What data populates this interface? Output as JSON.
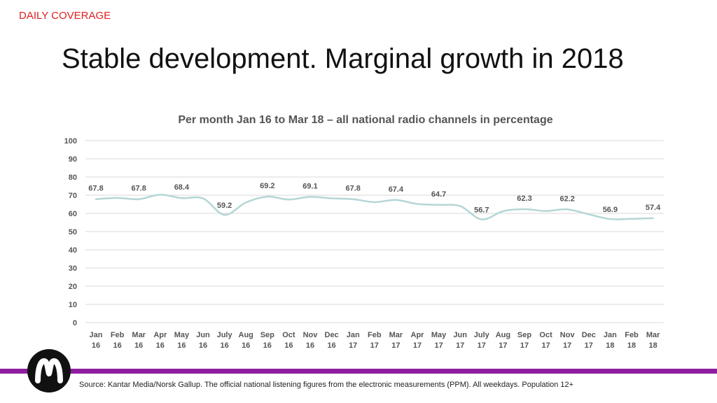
{
  "header": {
    "tag": "DAILY COVERAGE",
    "title": "Stable development. Marginal growth in 2018"
  },
  "footer": {
    "source": "Source: Kantar Media/Norsk Gallup. The official national listening figures from the electronic measurements (PPM). All weekdays. Population 12+",
    "logo_icon": "brand-logo-icon",
    "accent_color": "#8e1fa0"
  },
  "chart_data": {
    "type": "line",
    "title": "Per month Jan 16 to Mar 18 – all national radio channels in percentage",
    "xlabel": "",
    "ylabel": "",
    "ylim": [
      0,
      100
    ],
    "yticks": [
      0,
      10,
      20,
      30,
      40,
      50,
      60,
      70,
      80,
      90,
      100
    ],
    "grid": true,
    "line_color": "#b5d6d6",
    "categories": [
      [
        "Jan",
        "16"
      ],
      [
        "Feb",
        "16"
      ],
      [
        "Mar",
        "16"
      ],
      [
        "Apr",
        "16"
      ],
      [
        "May",
        "16"
      ],
      [
        "Jun",
        "16"
      ],
      [
        "July",
        "16"
      ],
      [
        "Aug",
        "16"
      ],
      [
        "Sep",
        "16"
      ],
      [
        "Oct",
        "16"
      ],
      [
        "Nov",
        "16"
      ],
      [
        "Dec",
        "16"
      ],
      [
        "Jan",
        "17"
      ],
      [
        "Feb",
        "17"
      ],
      [
        "Mar",
        "17"
      ],
      [
        "Apr",
        "17"
      ],
      [
        "May",
        "17"
      ],
      [
        "Jun",
        "17"
      ],
      [
        "July",
        "17"
      ],
      [
        "Aug",
        "17"
      ],
      [
        "Sep",
        "17"
      ],
      [
        "Oct",
        "17"
      ],
      [
        "Nov",
        "17"
      ],
      [
        "Dec",
        "17"
      ],
      [
        "Jan",
        "18"
      ],
      [
        "Feb",
        "18"
      ],
      [
        "Mar",
        "18"
      ]
    ],
    "values": [
      67.8,
      68.5,
      67.8,
      70.3,
      68.4,
      68.2,
      59.2,
      66.0,
      69.2,
      67.6,
      69.1,
      68.3,
      67.8,
      66.2,
      67.4,
      65.2,
      64.7,
      64.0,
      56.7,
      61.2,
      62.3,
      61.3,
      62.2,
      59.5,
      56.9,
      57.0,
      57.4
    ],
    "data_labels": [
      {
        "index": 0,
        "text": "67.8"
      },
      {
        "index": 2,
        "text": "67.8"
      },
      {
        "index": 4,
        "text": "68.4"
      },
      {
        "index": 6,
        "text": "59.2"
      },
      {
        "index": 8,
        "text": "69.2"
      },
      {
        "index": 10,
        "text": "69.1"
      },
      {
        "index": 12,
        "text": "67.8"
      },
      {
        "index": 14,
        "text": "67.4"
      },
      {
        "index": 16,
        "text": "64.7"
      },
      {
        "index": 18,
        "text": "56.7"
      },
      {
        "index": 20,
        "text": "62.3"
      },
      {
        "index": 22,
        "text": "62.2"
      },
      {
        "index": 24,
        "text": "56.9"
      },
      {
        "index": 26,
        "text": "57.4"
      }
    ]
  }
}
